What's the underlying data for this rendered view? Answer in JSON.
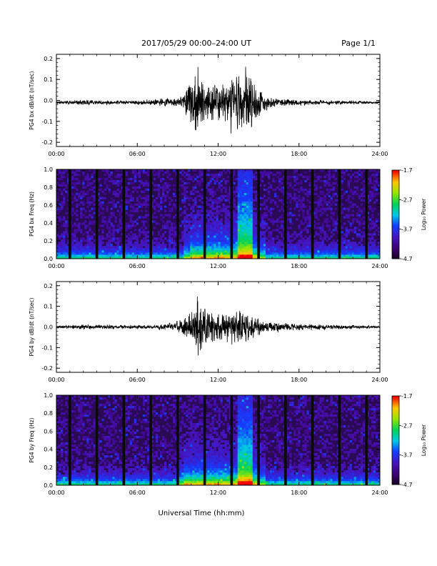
{
  "header": {
    "title": "2017/05/29   00:00–24:00 UT",
    "page": "Page 1/1"
  },
  "x_axis_title": "Universal Time (hh:mm)",
  "x_ticks": [
    "00:00",
    "06:00",
    "12:00",
    "18:00",
    "24:00"
  ],
  "colorbar": {
    "label": "Log₁₀ Power",
    "ticks": [
      "-1.7",
      "-2.7",
      "-3.7",
      "-4.7"
    ],
    "range": [
      -4.7,
      -1.7
    ]
  },
  "colors": {
    "trace": "#000000",
    "spectrogram_background": "#2a0a52"
  },
  "chart_data": [
    {
      "type": "line",
      "ylabel": "PG4 bx dB/dt (nT/sec)",
      "y_ticks": [
        "0.2",
        "0.1",
        "0.0",
        "-0.1",
        "-0.2"
      ],
      "ylim": [
        -0.22,
        0.22
      ],
      "xlim_hours": [
        0,
        24
      ],
      "baseline": -0.01,
      "envelope": [
        {
          "t": 0,
          "amp": 0.005
        },
        {
          "t": 2.0,
          "amp": 0.012
        },
        {
          "t": 5.5,
          "amp": 0.008
        },
        {
          "t": 7.5,
          "amp": 0.015
        },
        {
          "t": 9.0,
          "amp": 0.02
        },
        {
          "t": 9.5,
          "amp": 0.05
        },
        {
          "t": 10.0,
          "amp": 0.1
        },
        {
          "t": 10.5,
          "amp": 0.15
        },
        {
          "t": 11.0,
          "amp": 0.08
        },
        {
          "t": 12.0,
          "amp": 0.1
        },
        {
          "t": 12.5,
          "amp": 0.08
        },
        {
          "t": 13.0,
          "amp": 0.12
        },
        {
          "t": 14.0,
          "amp": 0.14
        },
        {
          "t": 14.5,
          "amp": 0.12
        },
        {
          "t": 15.0,
          "amp": 0.06
        },
        {
          "t": 16.0,
          "amp": 0.02
        },
        {
          "t": 18.0,
          "amp": 0.012
        },
        {
          "t": 24.0,
          "amp": 0.005
        }
      ]
    },
    {
      "type": "heatmap",
      "ylabel": "PG4 bx Freq (Hz)",
      "y_ticks": [
        "1.0",
        "0.8",
        "0.6",
        "0.4",
        "0.2",
        "0.0"
      ],
      "ylim": [
        0,
        1.0
      ],
      "xlim_hours": [
        0,
        24
      ],
      "data_gaps_hours": [
        1.0,
        3.0,
        5.0,
        7.0,
        9.0,
        11.0,
        13.0,
        15.0,
        17.0,
        19.0,
        21.0,
        23.0
      ],
      "activity_hours": [
        10.0,
        15.0
      ],
      "peak_hours": [
        13.5,
        14.5
      ]
    },
    {
      "type": "line",
      "ylabel": "PG4 by dB/dt (nT/sec)",
      "y_ticks": [
        "0.2",
        "0.1",
        "0.0",
        "-0.1",
        "-0.2"
      ],
      "ylim": [
        -0.22,
        0.22
      ],
      "xlim_hours": [
        0,
        24
      ],
      "baseline": 0.0,
      "envelope": [
        {
          "t": 0,
          "amp": 0.005
        },
        {
          "t": 2.0,
          "amp": 0.012
        },
        {
          "t": 5.5,
          "amp": 0.008
        },
        {
          "t": 8.0,
          "amp": 0.012
        },
        {
          "t": 9.5,
          "amp": 0.04
        },
        {
          "t": 10.0,
          "amp": 0.08
        },
        {
          "t": 10.5,
          "amp": 0.14
        },
        {
          "t": 11.0,
          "amp": 0.09
        },
        {
          "t": 12.0,
          "amp": 0.07
        },
        {
          "t": 13.0,
          "amp": 0.08
        },
        {
          "t": 14.0,
          "amp": 0.07
        },
        {
          "t": 15.0,
          "amp": 0.04
        },
        {
          "t": 16.0,
          "amp": 0.02
        },
        {
          "t": 17.5,
          "amp": 0.015
        },
        {
          "t": 24.0,
          "amp": 0.005
        }
      ]
    },
    {
      "type": "heatmap",
      "ylabel": "PG4 by Freq (Hz)",
      "y_ticks": [
        "1.0",
        "0.8",
        "0.6",
        "0.4",
        "0.2",
        "0.0"
      ],
      "ylim": [
        0,
        1.0
      ],
      "xlim_hours": [
        0,
        24
      ],
      "data_gaps_hours": [
        1.0,
        3.0,
        5.0,
        7.0,
        9.0,
        11.0,
        13.0,
        15.0,
        17.0,
        19.0,
        21.0,
        23.0
      ],
      "activity_hours": [
        9.5,
        15.0
      ],
      "peak_hours": [
        13.5,
        14.5
      ]
    }
  ]
}
